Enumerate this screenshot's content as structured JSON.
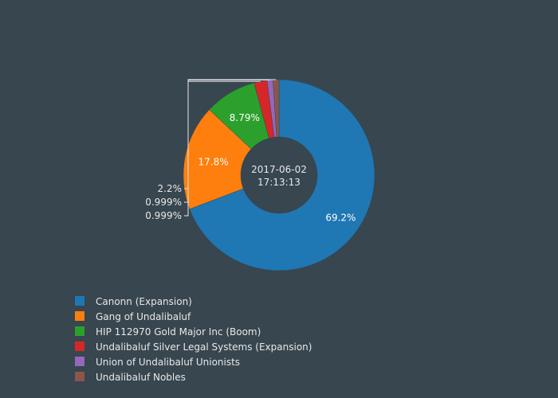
{
  "chart_data": {
    "type": "pie",
    "hole": true,
    "center_label": [
      "2017-06-02",
      "17:13:13"
    ],
    "legend_position": "bottom-left",
    "slices": [
      {
        "name": "Canonn (Expansion)",
        "value": 69.2,
        "label": "69.2%",
        "color": "#1f77b4"
      },
      {
        "name": "Gang of Undalibaluf",
        "value": 17.8,
        "label": "17.8%",
        "color": "#ff7f0e"
      },
      {
        "name": "HIP 112970 Gold Major Inc (Boom)",
        "value": 8.79,
        "label": "8.79%",
        "color": "#2ca02c"
      },
      {
        "name": "Undalibaluf Silver Legal Systems (Expansion)",
        "value": 2.2,
        "label": "2.2%",
        "color": "#d62728"
      },
      {
        "name": "Union of Undalibaluf Unionists",
        "value": 0.999,
        "label": "0.999%",
        "color": "#9467bd"
      },
      {
        "name": "Undalibaluf Nobles",
        "value": 0.999,
        "label": "0.999%",
        "color": "#8c564b"
      }
    ]
  }
}
